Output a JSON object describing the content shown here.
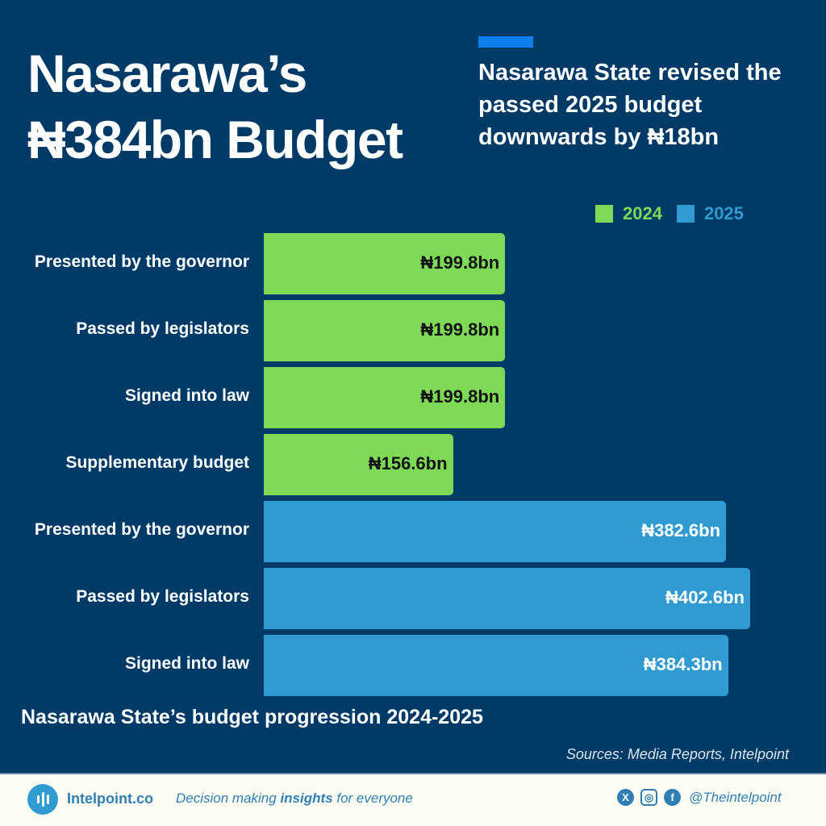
{
  "header": {
    "title_line1": "Nasarawa’s",
    "title_line2": "₦384bn Budget",
    "subtitle": "Nasarawa State revised the passed 2025 budget downwards by ₦18bn"
  },
  "colors": {
    "background": "#003a66",
    "y2024": "#7ed957",
    "y2025": "#2f9bd1"
  },
  "chart_data": {
    "type": "bar",
    "orientation": "horizontal",
    "title": "Nasarawa State’s budget progression 2024-2025",
    "legend": [
      "2024",
      "2025"
    ],
    "legend_position": "top-right",
    "bars": [
      {
        "label": "Presented by the governor",
        "series": "2024",
        "value": 199.8,
        "text": "₦199.8bn"
      },
      {
        "label": "Passed by legislators",
        "series": "2024",
        "value": 199.8,
        "text": "₦199.8bn"
      },
      {
        "label": "Signed into law",
        "series": "2024",
        "value": 199.8,
        "text": "₦199.8bn"
      },
      {
        "label": "Supplementary budget",
        "series": "2024",
        "value": 156.6,
        "text": "₦156.6bn"
      },
      {
        "label": "Presented by the governor",
        "series": "2025",
        "value": 382.6,
        "text": "₦382.6bn"
      },
      {
        "label": "Passed by legislators",
        "series": "2025",
        "value": 402.6,
        "text": "₦402.6bn"
      },
      {
        "label": "Signed into law",
        "series": "2025",
        "value": 384.3,
        "text": "₦384.3bn"
      }
    ],
    "unit": "₦ billion"
  },
  "sources": "Sources: Media Reports, Intelpoint",
  "footer": {
    "site": "Intelpoint.co",
    "tagline_pre": "Decision making ",
    "tagline_bold": "insights",
    "tagline_post": " for everyone",
    "handle": "@Theintelpoint",
    "social_icons": [
      "x-icon",
      "instagram-icon",
      "facebook-icon"
    ]
  }
}
